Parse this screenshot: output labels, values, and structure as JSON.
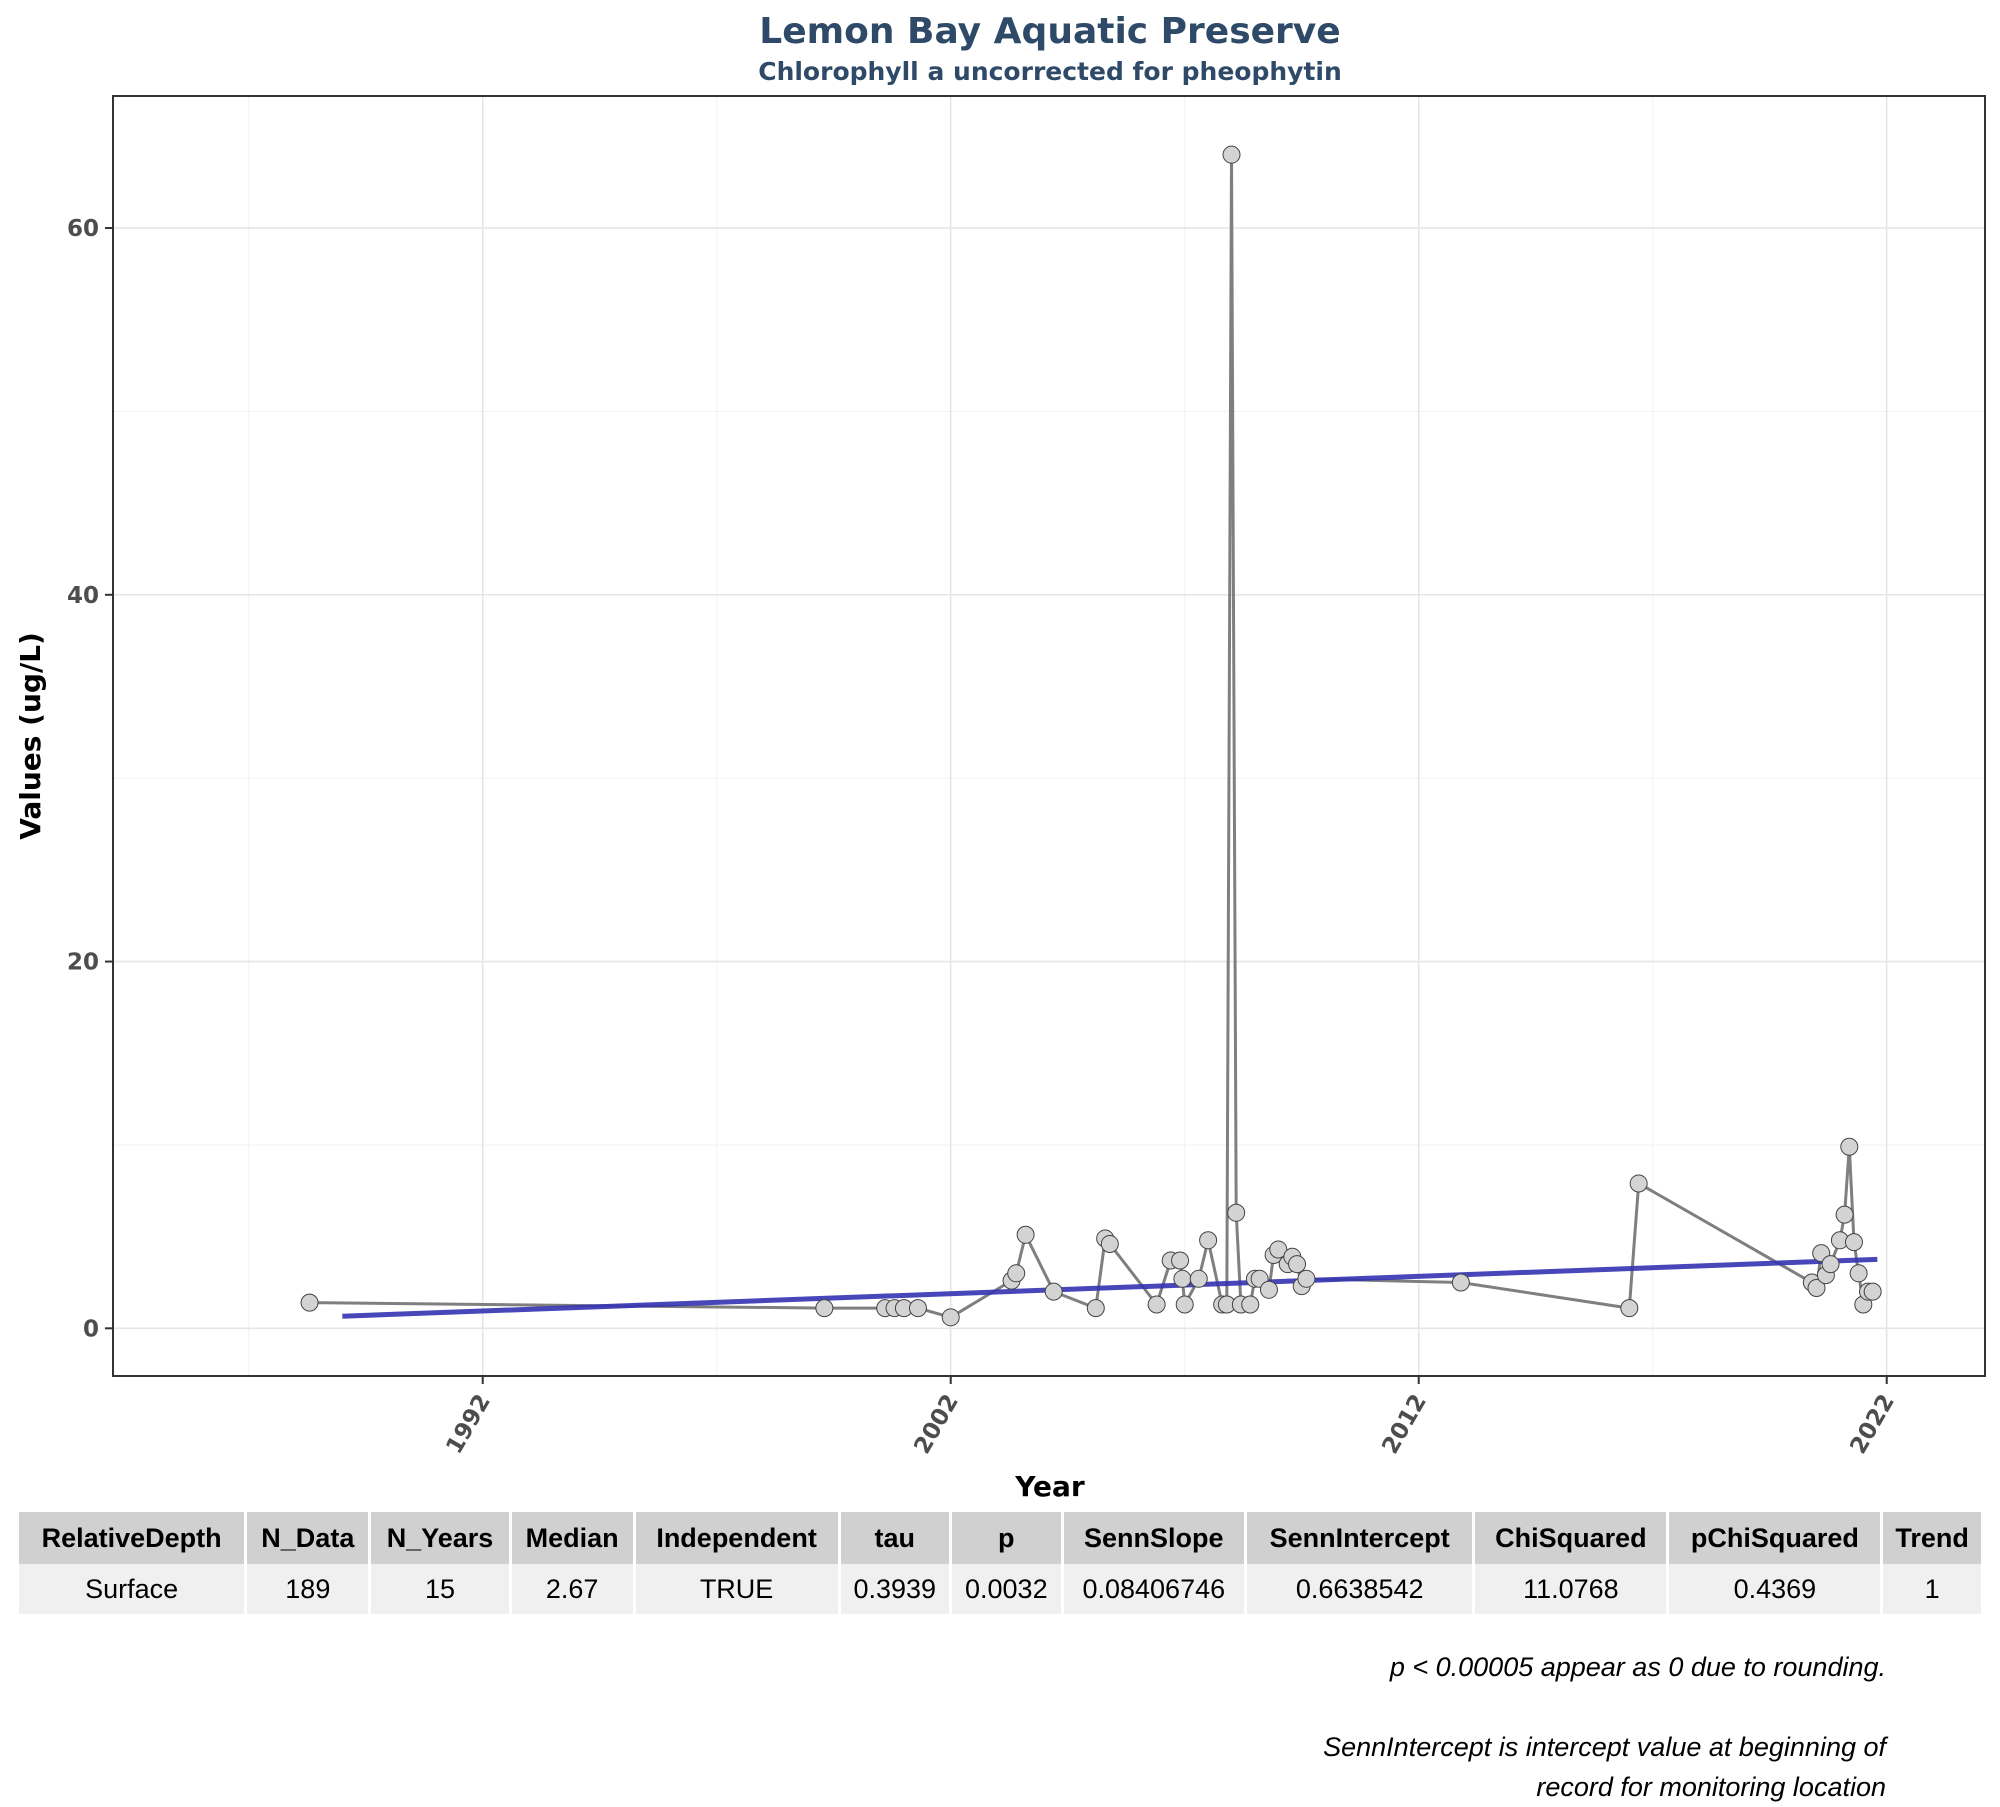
{
  "chart_data": {
    "type": "line",
    "title": "Lemon Bay Aquatic Preserve",
    "subtitle": "Chlorophyll a uncorrected for pheophytin",
    "xlabel": "Year",
    "ylabel": "Values (ug/L)",
    "xlim": [
      1984.1,
      2024.1
    ],
    "ylim": [
      -2.6,
      67.2
    ],
    "x_ticks": [
      "1992",
      "2002",
      "2012",
      "2022"
    ],
    "y_ticks": [
      "0",
      "20",
      "40",
      "60"
    ],
    "grid": true,
    "legend": "none",
    "series": [
      {
        "type": "line+points",
        "color": "#7f7f7f",
        "point_fill": "#d3d3d3",
        "x": [
          1988.3,
          1999.3,
          2000.6,
          2000.8,
          2001.0,
          2001.3,
          2002.0,
          2003.3,
          2003.4,
          2003.6,
          2004.2,
          2005.1,
          2005.3,
          2005.4,
          2006.4,
          2006.7,
          2006.9,
          2006.95,
          2007.0,
          2007.3,
          2007.5,
          2007.8,
          2007.9,
          2008.0,
          2008.1,
          2008.2,
          2008.4,
          2008.5,
          2008.6,
          2008.8,
          2008.9,
          2009.0,
          2009.2,
          2009.3,
          2009.4,
          2009.5,
          2009.6,
          2012.9,
          2016.5,
          2016.7,
          2020.4,
          2020.5,
          2020.6,
          2020.7,
          2020.8,
          2021.0,
          2021.1,
          2021.2,
          2021.3,
          2021.4,
          2021.5,
          2021.6,
          2021.7
        ],
        "y": [
          1.4,
          1.1,
          1.1,
          1.1,
          1.1,
          1.1,
          0.6,
          2.6,
          3.0,
          5.1,
          2.0,
          1.1,
          4.9,
          4.6,
          1.3,
          3.7,
          3.7,
          2.7,
          1.3,
          2.7,
          4.8,
          1.3,
          1.3,
          64.0,
          6.3,
          1.3,
          1.3,
          2.7,
          2.7,
          2.1,
          4.0,
          4.3,
          3.5,
          3.9,
          3.5,
          2.3,
          2.7,
          2.5,
          1.1,
          7.9,
          2.5,
          2.2,
          4.1,
          2.9,
          3.5,
          4.8,
          6.2,
          9.9,
          4.7,
          3.0,
          1.3,
          2.0,
          2.0
        ]
      },
      {
        "name": "",
        "type": "trend",
        "color": "#3333b3",
        "x": [
          1989.0,
          2021.8
        ],
        "y": [
          0.66,
          3.76
        ]
      }
    ]
  },
  "table": {
    "headers": [
      "RelativeDepth",
      "N_Data",
      "N_Years",
      "Median",
      "Independent",
      "tau",
      "p",
      "SennSlope",
      "SennIntercept",
      "ChiSquared",
      "pChiSquared",
      "Trend"
    ],
    "rows": [
      [
        "Surface",
        "189",
        "15",
        "2.67",
        "TRUE",
        "0.3939",
        "0.0032",
        "0.08406746",
        "0.6638542",
        "11.0768",
        "0.4369",
        "1"
      ]
    ]
  },
  "footnotes": {
    "rounding": "p < 0.00005 appear as 0 due to rounding.",
    "intercept_line1": "SennIntercept is intercept value at beginning of",
    "intercept_line2": "record for monitoring location"
  }
}
